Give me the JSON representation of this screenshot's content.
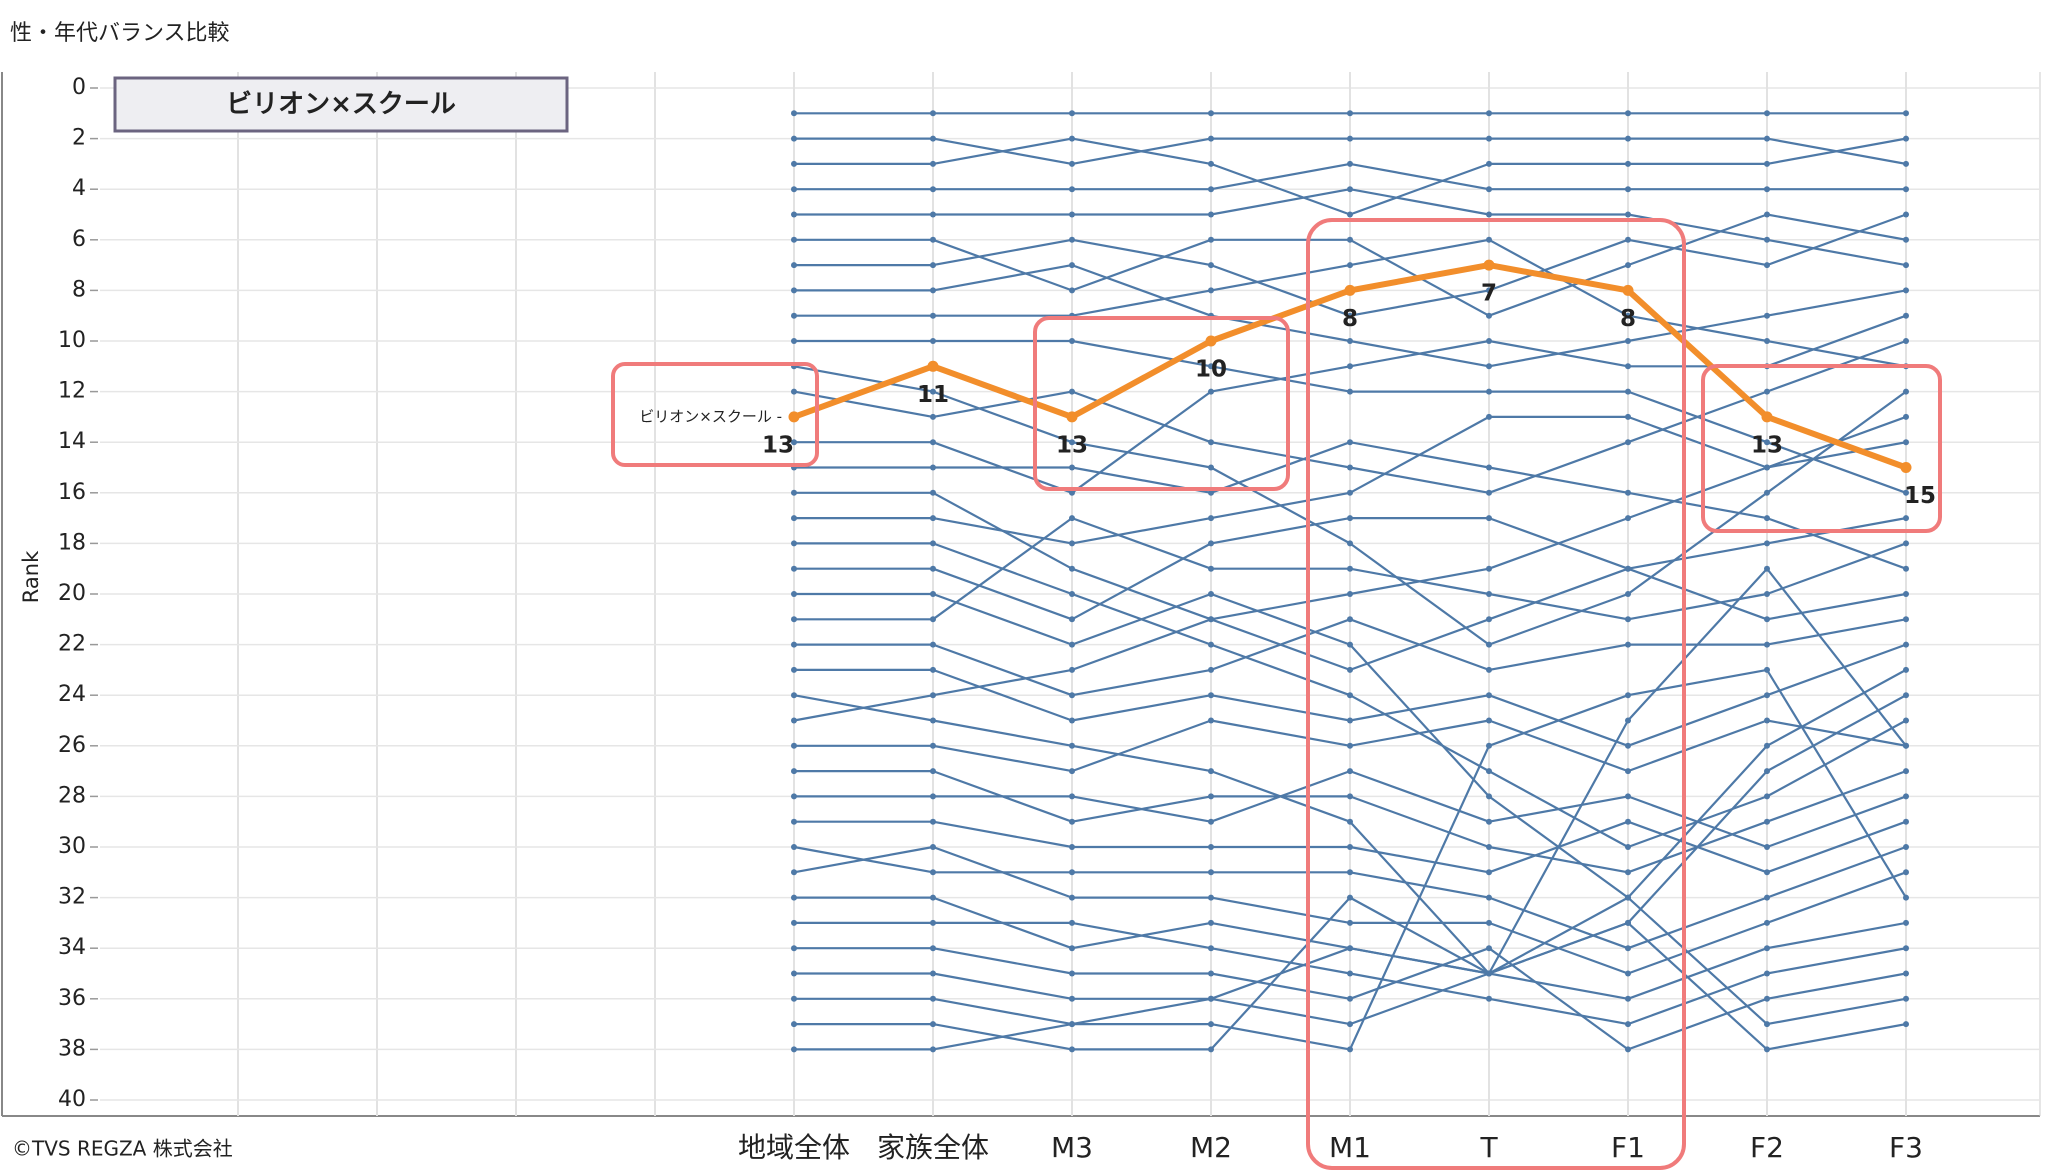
{
  "chart_data": {
    "type": "bump",
    "title": "性・年代バランス比較",
    "footer": "©TVS REGZA 株式会社",
    "y_label": "Rank",
    "categories": [
      "地域全体",
      "家族全体",
      "M3",
      "M2",
      "M1",
      "T",
      "F1",
      "F2",
      "F3"
    ],
    "ylim": [
      0,
      40
    ],
    "yticks": [
      0,
      2,
      4,
      6,
      8,
      10,
      12,
      14,
      16,
      18,
      20,
      22,
      24,
      26,
      28,
      30,
      32,
      34,
      36,
      38,
      40
    ],
    "grid": true,
    "series": [
      {
        "name": "ビリオン×スクール",
        "line_label": "ビリオン×スクール -",
        "color": "#f28e2b",
        "values": [
          13,
          11,
          13,
          10,
          8,
          7,
          8,
          13,
          15
        ]
      }
    ],
    "background_color": "#4e79a7",
    "background_series": [
      [
        1,
        1,
        1,
        1,
        1,
        1,
        1,
        1,
        1
      ],
      [
        2,
        2,
        3,
        2,
        2,
        2,
        2,
        2,
        3
      ],
      [
        3,
        3,
        2,
        3,
        5,
        3,
        3,
        3,
        2
      ],
      [
        4,
        4,
        4,
        4,
        3,
        4,
        4,
        4,
        4
      ],
      [
        5,
        5,
        5,
        5,
        4,
        5,
        5,
        6,
        7
      ],
      [
        6,
        6,
        8,
        6,
        6,
        9,
        7,
        5,
        6
      ],
      [
        7,
        7,
        6,
        7,
        9,
        8,
        6,
        7,
        5
      ],
      [
        8,
        8,
        7,
        9,
        10,
        11,
        10,
        9,
        8
      ],
      [
        9,
        9,
        9,
        8,
        7,
        6,
        9,
        10,
        11
      ],
      [
        10,
        10,
        10,
        11,
        12,
        12,
        12,
        14,
        16
      ],
      [
        11,
        12,
        14,
        15,
        18,
        22,
        20,
        16,
        12
      ],
      [
        12,
        13,
        12,
        14,
        15,
        16,
        14,
        12,
        10
      ],
      [
        14,
        14,
        16,
        12,
        11,
        10,
        11,
        11,
        9
      ],
      [
        15,
        15,
        15,
        16,
        14,
        15,
        16,
        17,
        19
      ],
      [
        16,
        16,
        19,
        21,
        20,
        19,
        17,
        15,
        13
      ],
      [
        17,
        17,
        18,
        17,
        16,
        13,
        13,
        15,
        14
      ],
      [
        18,
        18,
        20,
        22,
        24,
        27,
        30,
        28,
        25
      ],
      [
        19,
        19,
        21,
        18,
        17,
        17,
        19,
        18,
        17
      ],
      [
        20,
        20,
        22,
        20,
        22,
        28,
        32,
        26,
        23
      ],
      [
        21,
        21,
        17,
        19,
        19,
        20,
        21,
        20,
        18
      ],
      [
        22,
        22,
        24,
        23,
        21,
        23,
        22,
        22,
        21
      ],
      [
        23,
        23,
        25,
        24,
        25,
        24,
        26,
        24,
        22
      ],
      [
        24,
        25,
        26,
        27,
        29,
        35,
        33,
        27,
        24
      ],
      [
        25,
        24,
        23,
        21,
        23,
        21,
        19,
        21,
        20
      ],
      [
        26,
        26,
        27,
        25,
        26,
        25,
        27,
        25,
        26
      ],
      [
        27,
        27,
        29,
        28,
        28,
        30,
        31,
        29,
        27
      ],
      [
        28,
        28,
        28,
        29,
        27,
        29,
        28,
        30,
        28
      ],
      [
        29,
        29,
        30,
        30,
        30,
        31,
        29,
        31,
        29
      ],
      [
        30,
        31,
        31,
        31,
        31,
        32,
        34,
        32,
        30
      ],
      [
        31,
        30,
        32,
        32,
        33,
        33,
        35,
        33,
        31
      ],
      [
        32,
        32,
        34,
        33,
        34,
        35,
        36,
        34,
        33
      ],
      [
        33,
        33,
        33,
        34,
        35,
        36,
        37,
        35,
        34
      ],
      [
        34,
        34,
        35,
        35,
        36,
        34,
        38,
        36,
        35
      ],
      [
        35,
        35,
        36,
        36,
        37,
        35,
        32,
        37,
        36
      ],
      [
        36,
        36,
        37,
        37,
        38,
        26,
        24,
        23,
        32
      ],
      [
        37,
        37,
        38,
        38,
        32,
        35,
        25,
        19,
        26
      ],
      [
        38,
        38,
        37,
        36,
        34,
        35,
        33,
        38,
        37
      ]
    ]
  }
}
